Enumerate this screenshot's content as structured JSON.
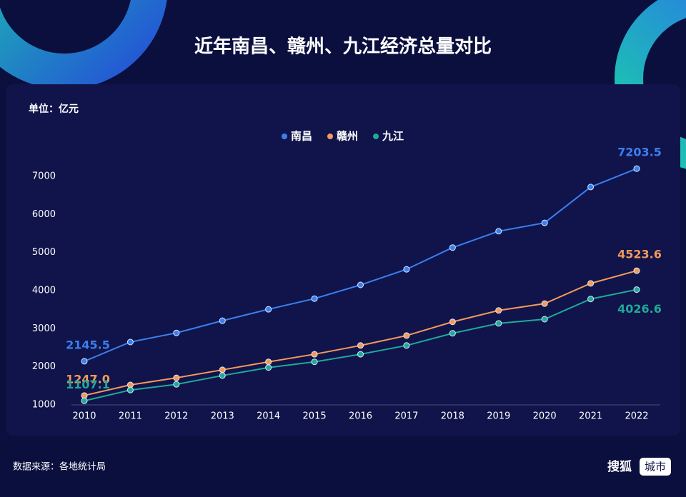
{
  "chart_data": {
    "type": "line",
    "title": "近年南昌、赣州、九江经济总量对比",
    "unit_label": "单位：亿元",
    "source": "数据来源：各地统计局",
    "categories": [
      "2010",
      "2011",
      "2012",
      "2013",
      "2014",
      "2015",
      "2016",
      "2017",
      "2018",
      "2019",
      "2020",
      "2021",
      "2022"
    ],
    "series": [
      {
        "name": "南昌",
        "color": "#3b7ff0",
        "values": [
          2145.5,
          2650,
          2890,
          3210,
          3510,
          3790,
          4150,
          4560,
          5130,
          5560,
          5780,
          6720,
          7203.5
        ],
        "value_labels": [
          "2145.5",
          null,
          null,
          null,
          null,
          null,
          null,
          null,
          null,
          null,
          null,
          null,
          "7203.5"
        ]
      },
      {
        "name": "赣州",
        "color": "#f39a5a",
        "values": [
          1247.0,
          1525,
          1710,
          1920,
          2130,
          2330,
          2560,
          2820,
          3180,
          3480,
          3660,
          4190,
          4523.6
        ],
        "value_labels": [
          "1247.0",
          null,
          null,
          null,
          null,
          null,
          null,
          null,
          null,
          null,
          null,
          null,
          "4523.6"
        ]
      },
      {
        "name": "九江",
        "color": "#1fa999",
        "values": [
          1107.1,
          1390,
          1540,
          1770,
          1980,
          2130,
          2330,
          2560,
          2880,
          3140,
          3250,
          3780,
          4026.6
        ],
        "value_labels": [
          "1107.1",
          null,
          null,
          null,
          null,
          null,
          null,
          null,
          null,
          null,
          null,
          null,
          "4026.6"
        ]
      }
    ],
    "ylim": [
      1000,
      7500
    ],
    "yticks": [
      1000,
      2000,
      3000,
      4000,
      5000,
      6000,
      7000
    ],
    "grid": false
  },
  "brand": {
    "name": "搜狐",
    "tag": "城市"
  }
}
